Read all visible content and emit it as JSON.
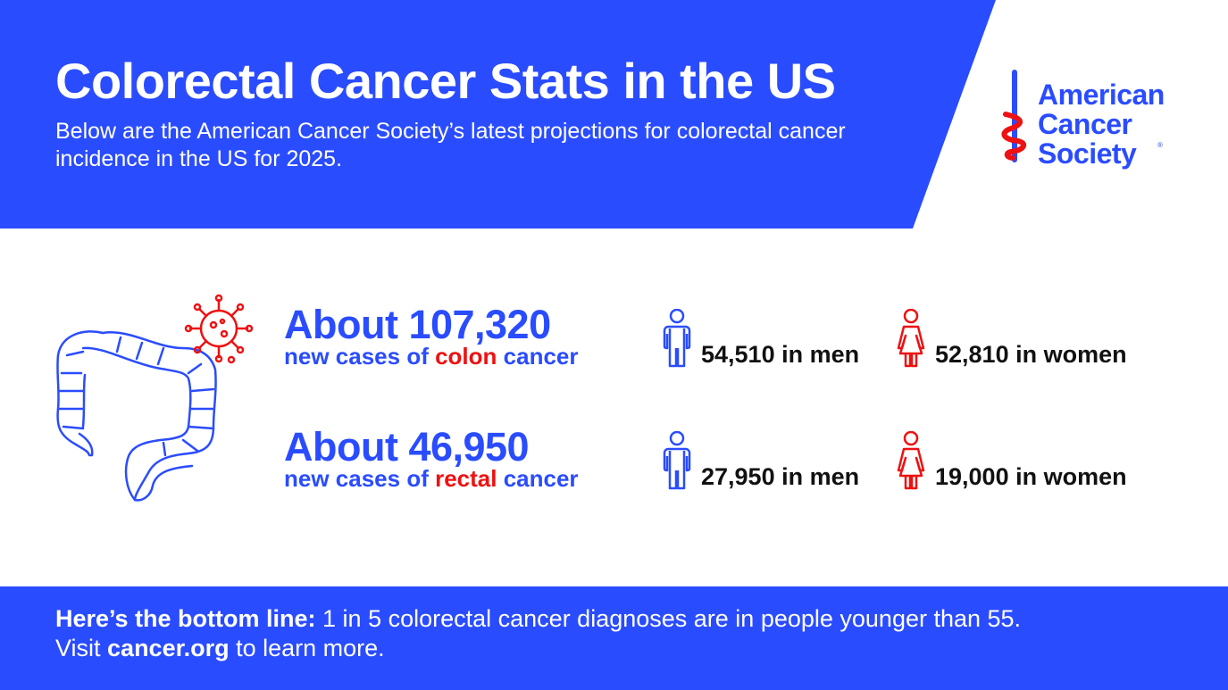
{
  "header": {
    "title": "Colorectal Cancer Stats in the US",
    "subtitle": "Below are the American Cancer Society’s latest projections for colorectal cancer incidence in the US for 2025."
  },
  "logo": {
    "lines": [
      "American",
      "Cancer",
      "Society"
    ],
    "registered_mark": "®"
  },
  "stats": [
    {
      "headline": "About 107,320",
      "sub_prefix": "new cases of ",
      "sub_highlight": "colon",
      "sub_suffix": " cancer",
      "men": "54,510 in men",
      "women": "52,810 in women"
    },
    {
      "headline": "About 46,950",
      "sub_prefix": "new cases of ",
      "sub_highlight": "rectal",
      "sub_suffix": " cancer",
      "men": "27,950 in men",
      "women": "19,000 in women"
    }
  ],
  "footer": {
    "lead": "Here’s the bottom line:",
    "line1_rest": " 1 in 5 colorectal cancer diagnoses are in people younger than 55.",
    "visit": "Visit ",
    "link": "cancer.org",
    "line2_rest": " to learn more."
  },
  "colors": {
    "brand_blue": "#2a4cff",
    "accent_red": "#ee1111"
  }
}
